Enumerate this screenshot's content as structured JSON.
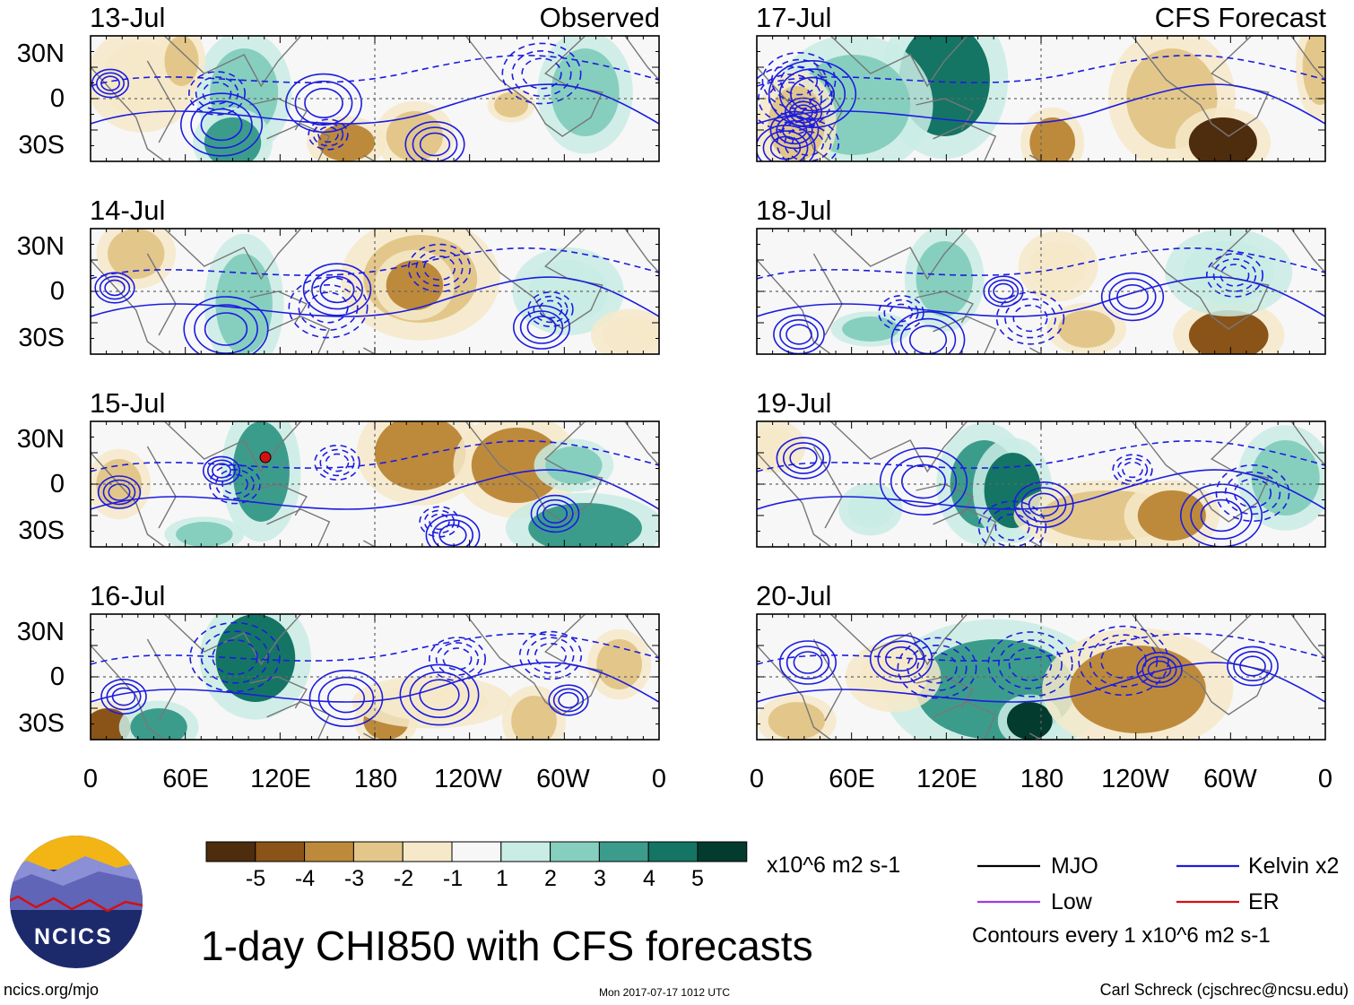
{
  "panels": [
    {
      "date": "13-Jul",
      "corner_label": "Observed"
    },
    {
      "date": "14-Jul",
      "corner_label": ""
    },
    {
      "date": "15-Jul",
      "corner_label": ""
    },
    {
      "date": "16-Jul",
      "corner_label": ""
    },
    {
      "date": "17-Jul",
      "corner_label": "CFS Forecast"
    },
    {
      "date": "18-Jul",
      "corner_label": ""
    },
    {
      "date": "19-Jul",
      "corner_label": ""
    },
    {
      "date": "20-Jul",
      "corner_label": ""
    }
  ],
  "lat_labels": [
    "30N",
    "0",
    "30S"
  ],
  "lon_labels": [
    "0",
    "60E",
    "120E",
    "180",
    "120W",
    "60W",
    "0"
  ],
  "colorbar": {
    "labels": [
      "-5",
      "-4",
      "-3",
      "-2",
      "-1",
      "1",
      "2",
      "3",
      "4",
      "5"
    ],
    "colors": [
      "#4e2c0e",
      "#8a5418",
      "#bd8a3c",
      "#e3c78a",
      "#f6e9c9",
      "#f7f7f7",
      "#c9ece4",
      "#86cfbf",
      "#3c9c8c",
      "#147564",
      "#033b2e"
    ],
    "units": "x10^6 m2 s-1"
  },
  "legend": {
    "items": [
      {
        "label": "MJO",
        "color": "#000000"
      },
      {
        "label": "Kelvin x2",
        "color": "#1c1ce0"
      },
      {
        "label": "Low",
        "color": "#9d3ce0"
      },
      {
        "label": "ER",
        "color": "#d41010"
      }
    ],
    "note": "Contours every 1 x10^6 m2 s-1"
  },
  "title": "1-day CHI850 with CFS forecasts",
  "logo_text": "NCICS",
  "footer": {
    "left": "ncics.org/mjo",
    "center": "Mon 2017-07-17 1012 UTC",
    "right": "Carl Schreck (cjschrec@ncsu.edu)"
  }
}
